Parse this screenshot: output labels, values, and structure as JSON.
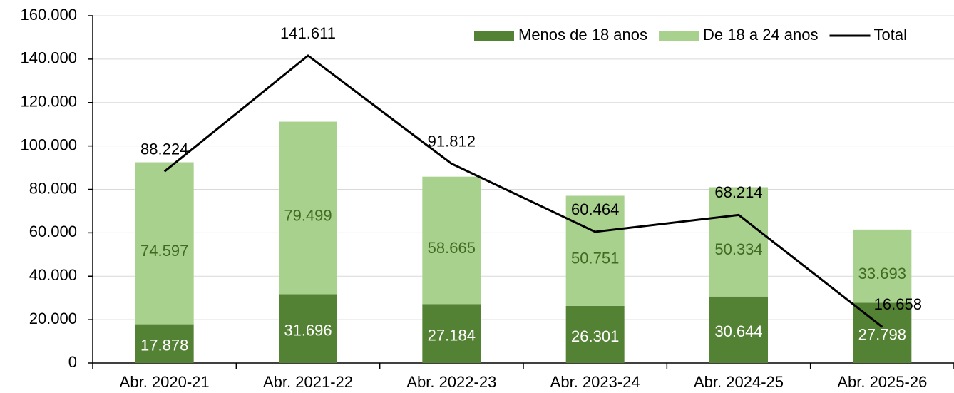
{
  "chart_data": {
    "type": "bar",
    "stacked": true,
    "categories": [
      "Abr. 2020-21",
      "Abr. 2021-22",
      "Abr. 2022-23",
      "Abr. 2023-24",
      "Abr. 2024-25",
      "Abr. 2025-26"
    ],
    "series": [
      {
        "name": "Menos de 18 anos",
        "type": "bar",
        "color": "#548235",
        "values": [
          17878,
          31696,
          27184,
          26301,
          30644,
          27798
        ],
        "value_labels": [
          "17.878",
          "31.696",
          "27.184",
          "26.301",
          "30.644",
          "27.798"
        ]
      },
      {
        "name": "De 18 a 24 anos",
        "type": "bar",
        "color": "#a9d18e",
        "values": [
          74597,
          79499,
          58665,
          50751,
          50334,
          33693
        ],
        "value_labels": [
          "74.597",
          "79.499",
          "58.665",
          "50.751",
          "50.334",
          "33.693"
        ]
      },
      {
        "name": "Total",
        "type": "line",
        "color": "#000000",
        "values": [
          88224,
          141611,
          91812,
          60464,
          68214,
          16658
        ],
        "value_labels": [
          "88.224",
          "141.611",
          "91.812",
          "60.464",
          "68.214",
          "16.658"
        ]
      }
    ],
    "ylim": [
      0,
      160000
    ],
    "yticks": [
      0,
      {
        "value": 20000,
        "label": "20.000"
      },
      {
        "value": 40000,
        "label": "40.000"
      },
      {
        "value": 60000,
        "label": "60.000"
      },
      {
        "value": 80000,
        "label": "80.000"
      },
      {
        "value": 100000,
        "label": "100.000"
      },
      {
        "value": 120000,
        "label": "120.000"
      },
      {
        "value": 140000,
        "label": "140.000"
      },
      {
        "value": 160000,
        "label": "160.000"
      }
    ],
    "grid": true,
    "legend": "top-right"
  }
}
